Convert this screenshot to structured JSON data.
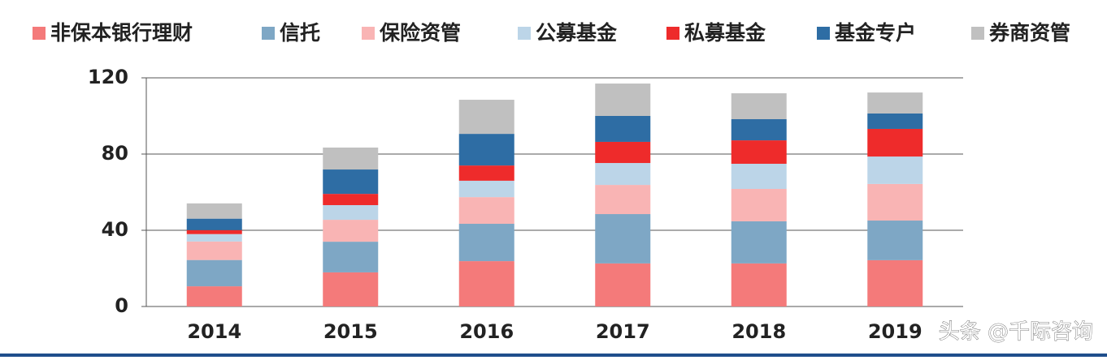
{
  "chart_data": {
    "type": "bar",
    "stacked": true,
    "categories": [
      "2014",
      "2015",
      "2016",
      "2017",
      "2018",
      "2019"
    ],
    "series": [
      {
        "name": "非保本银行理财",
        "color": "#f47a7a",
        "values": [
          10.6,
          17.9,
          23.8,
          22.6,
          22.6,
          24.3
        ]
      },
      {
        "name": "信托",
        "color": "#7ea7c5",
        "values": [
          13.8,
          16.1,
          19.6,
          25.9,
          22.1,
          20.8
        ]
      },
      {
        "name": "保险资管",
        "color": "#f9b4b4",
        "values": [
          9.7,
          11.5,
          14.0,
          15.3,
          17.0,
          19.2
        ]
      },
      {
        "name": "公募基金",
        "color": "#bcd5e8",
        "values": [
          3.9,
          7.7,
          8.6,
          11.5,
          13.2,
          14.4
        ]
      },
      {
        "name": "私募基金",
        "color": "#ee2b2b",
        "values": [
          2.1,
          5.9,
          8.0,
          11.1,
          12.3,
          14.5
        ]
      },
      {
        "name": "基金专户",
        "color": "#2e6da4",
        "values": [
          6.0,
          12.8,
          16.6,
          13.6,
          11.1,
          8.1
        ]
      },
      {
        "name": "券商资管",
        "color": "#c0c0c0",
        "values": [
          8.0,
          11.5,
          17.9,
          17.0,
          13.6,
          11.0
        ]
      }
    ],
    "ylim": [
      0,
      120
    ],
    "yticks": [
      0,
      40,
      80,
      120
    ],
    "grid": true,
    "watermark": "头条 @千际咨询"
  }
}
